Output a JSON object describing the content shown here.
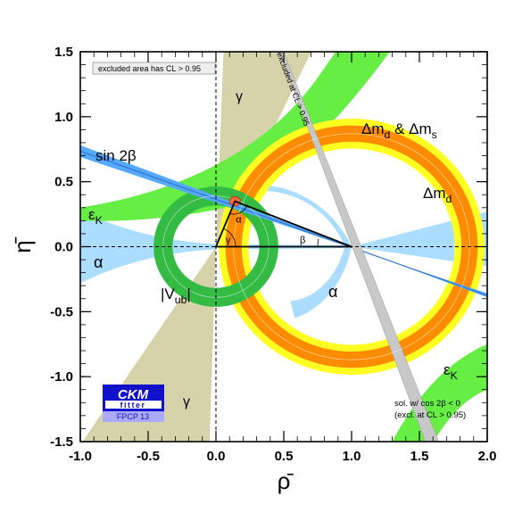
{
  "chart_data": {
    "type": "other",
    "xlabel": "ρ̄",
    "ylabel": "η̄",
    "xlim": [
      -1.0,
      2.0
    ],
    "ylim": [
      -1.5,
      1.5
    ],
    "x_ticks": [
      "-1.0",
      "-0.5",
      "0.0",
      "0.5",
      "1.0",
      "1.5",
      "2.0"
    ],
    "y_ticks": [
      "-1.5",
      "-1.0",
      "-0.5",
      "0.0",
      "0.5",
      "1.0",
      "1.5"
    ],
    "legend_note": "excluded area has CL > 0.95",
    "apex": {
      "rho": 0.14,
      "eta": 0.35
    },
    "constraints": {
      "dm_outer": {
        "label": "Δm",
        "sub1": "d",
        "amp": " & ",
        "sub2": "s",
        "center": [
          1.0,
          0.0
        ],
        "r_in": 0.76,
        "r_out": 0.98,
        "color": "#ffff22"
      },
      "dm_inner": {
        "label": "Δm",
        "sub": "d",
        "center": [
          1.0,
          0.0
        ],
        "r_in": 0.81,
        "r_out": 0.93,
        "color": "#ff8c00"
      },
      "vub": {
        "label": "|V",
        "sub": "ub",
        "suffix": "|",
        "center": [
          0.0,
          0.0
        ],
        "r_in": 0.32,
        "r_out": 0.46,
        "color": "#33bb44"
      },
      "sin2beta": {
        "label": "sin 2β",
        "color": "#55aaff"
      },
      "epsK": {
        "label": "ε",
        "sub": "K",
        "color": "#66ee44"
      },
      "alpha": {
        "label": "α",
        "color": "#aaddff"
      },
      "gamma": {
        "label": "γ",
        "color": "#d6d3aa"
      }
    },
    "triangle_labels": {
      "alpha": "α",
      "beta": "β",
      "gamma": "γ"
    },
    "excluded_note": "excluded at CL > 0.95",
    "solution_note_1": "sol. w/ cos 2β < 0",
    "solution_note_2": "(excl. at CL > 0.95)",
    "logo": {
      "line1": "CKM",
      "line2": "fitter",
      "line3": "FPCP 13"
    }
  }
}
